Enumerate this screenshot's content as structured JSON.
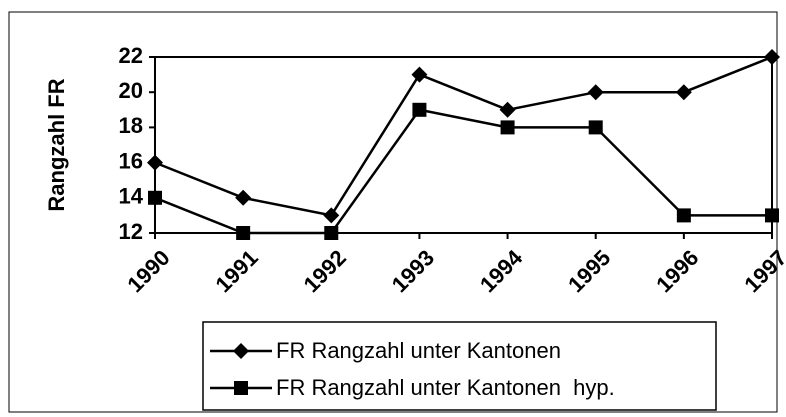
{
  "chart_data": {
    "type": "line",
    "y_label": "Rangzahl FR",
    "categories": [
      "1990",
      "1991",
      "1992",
      "1993",
      "1994",
      "1995",
      "1996",
      "1997"
    ],
    "series": [
      {
        "name": "FR Rangzahl unter Kantonen",
        "color": "#000000",
        "marker": "diamond",
        "values": [
          16,
          14,
          13,
          21,
          19,
          20,
          20,
          22
        ]
      },
      {
        "name": "FR Rangzahl unter Kantonen  hyp.",
        "color": "#000000",
        "marker": "square",
        "values": [
          14,
          12,
          12,
          19,
          18,
          18,
          13,
          13
        ]
      }
    ],
    "ylim": [
      12,
      22
    ],
    "yticks": [
      12,
      14,
      16,
      18,
      20,
      22
    ],
    "grid": false
  }
}
